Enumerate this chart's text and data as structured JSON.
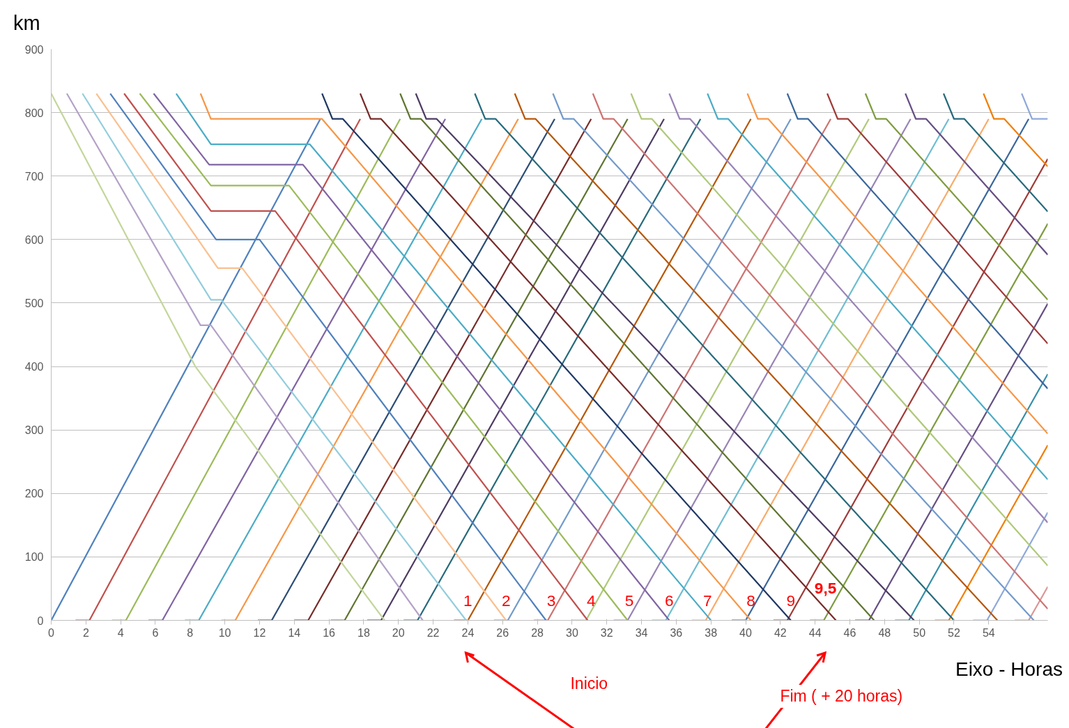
{
  "chart_data": {
    "type": "line",
    "xlabel": "Eixo - Horas",
    "ylabel": "km",
    "xlim": [
      0,
      57.4
    ],
    "ylim": [
      0,
      900
    ],
    "xticks": [
      0,
      2,
      4,
      6,
      8,
      10,
      12,
      14,
      16,
      18,
      20,
      22,
      24,
      26,
      28,
      30,
      32,
      34,
      36,
      38,
      40,
      42,
      44,
      46,
      48,
      50,
      52,
      54
    ],
    "yticks": [
      0,
      100,
      200,
      300,
      400,
      500,
      600,
      700,
      800,
      900
    ],
    "grid": "y",
    "series": [
      {
        "color": "#4f81bd",
        "x": [
          0,
          15.5
        ],
        "values": [
          0,
          790
        ]
      },
      {
        "color": "#c0504d",
        "x": [
          1.4,
          2.2,
          17.8
        ],
        "values": [
          0,
          0,
          790
        ]
      },
      {
        "color": "#9bbb59",
        "x": [
          3.5,
          4.3,
          20.1
        ],
        "values": [
          0,
          0,
          790
        ]
      },
      {
        "color": "#8064a2",
        "x": [
          5.6,
          6.4,
          22.7
        ],
        "values": [
          0,
          0,
          790
        ]
      },
      {
        "color": "#4bacc6",
        "x": [
          7.7,
          8.5,
          24.8
        ],
        "values": [
          0,
          0,
          790
        ]
      },
      {
        "color": "#f79646",
        "x": [
          9.8,
          10.6,
          26.9
        ],
        "values": [
          0,
          0,
          790
        ]
      },
      {
        "color": "#2c4d75",
        "x": [
          11.9,
          12.7,
          29.0
        ],
        "values": [
          0,
          0,
          790
        ]
      },
      {
        "color": "#772c2a",
        "x": [
          14.0,
          14.8,
          31.1
        ],
        "values": [
          0,
          0,
          790
        ]
      },
      {
        "color": "#5f7530",
        "x": [
          16.1,
          16.9,
          33.2
        ],
        "values": [
          0,
          0,
          790
        ]
      },
      {
        "color": "#4d3b62",
        "x": [
          18.2,
          19.0,
          35.3
        ],
        "values": [
          0,
          0,
          790
        ]
      },
      {
        "color": "#276a7c",
        "x": [
          20.3,
          21.1,
          37.4
        ],
        "values": [
          0,
          0,
          790
        ]
      },
      {
        "color": "#b65708",
        "x": [
          23.2,
          24.0,
          40.3
        ],
        "values": [
          0,
          0,
          790
        ]
      },
      {
        "color": "#729aca",
        "x": [
          25.5,
          26.3,
          42.6
        ],
        "values": [
          0,
          0,
          790
        ]
      },
      {
        "color": "#cd7371",
        "x": [
          27.8,
          28.6,
          44.9
        ],
        "values": [
          0,
          0,
          790
        ]
      },
      {
        "color": "#afc97a",
        "x": [
          30.0,
          30.8,
          47.1
        ],
        "values": [
          0,
          0,
          790
        ]
      },
      {
        "color": "#9983b5",
        "x": [
          32.4,
          33.2,
          49.5
        ],
        "values": [
          0,
          0,
          790
        ]
      },
      {
        "color": "#6fbdd1",
        "x": [
          34.6,
          35.4,
          51.7
        ],
        "values": [
          0,
          0,
          790
        ]
      },
      {
        "color": "#f9ab6b",
        "x": [
          36.9,
          37.7,
          54.0
        ],
        "values": [
          0,
          0,
          790
        ]
      },
      {
        "color": "#3a679c",
        "x": [
          39.2,
          40.0,
          56.3
        ],
        "values": [
          0,
          0,
          790
        ]
      },
      {
        "color": "#9f3b38",
        "x": [
          41.6,
          42.4,
          57.4
        ],
        "values": [
          0,
          0,
          727
        ]
      },
      {
        "color": "#7e9c40",
        "x": [
          43.7,
          44.5,
          57.4
        ],
        "values": [
          0,
          0,
          625
        ]
      },
      {
        "color": "#664f83",
        "x": [
          46.3,
          47.1,
          57.4
        ],
        "values": [
          0,
          0,
          499
        ]
      },
      {
        "color": "#358ea6",
        "x": [
          48.6,
          49.4,
          57.4
        ],
        "values": [
          0,
          0,
          388
        ]
      },
      {
        "color": "#f07f09",
        "x": [
          50.9,
          51.7,
          57.4
        ],
        "values": [
          0,
          0,
          276
        ]
      },
      {
        "color": "#8ea9db",
        "x": [
          53.1,
          53.9,
          57.4
        ],
        "values": [
          0,
          0,
          170
        ]
      },
      {
        "color": "#d99795",
        "x": [
          55.5,
          56.3,
          57.4
        ],
        "values": [
          0,
          0,
          53
        ]
      },
      {
        "color": "#c3d69b",
        "x": [
          0,
          8.3,
          19.2
        ],
        "values": [
          830,
          400,
          0
        ]
      },
      {
        "color": "#b3a2c7",
        "x": [
          0.9,
          8.6,
          9.2,
          21.4
        ],
        "values": [
          830,
          465,
          465,
          0
        ]
      },
      {
        "color": "#93cddd",
        "x": [
          1.8,
          9.2,
          9.8,
          23.9
        ],
        "values": [
          830,
          505,
          505,
          0
        ]
      },
      {
        "color": "#fac090",
        "x": [
          2.6,
          9.6,
          11.0,
          26.2
        ],
        "values": [
          830,
          555,
          555,
          0
        ]
      },
      {
        "color": "#4f81bd",
        "x": [
          3.4,
          9.5,
          12.0,
          28.5
        ],
        "values": [
          830,
          600,
          600,
          0
        ]
      },
      {
        "color": "#c0504d",
        "x": [
          4.2,
          9.2,
          12.9,
          30.9
        ],
        "values": [
          830,
          645,
          645,
          0
        ]
      },
      {
        "color": "#9bbb59",
        "x": [
          5.1,
          9.2,
          13.7,
          33.2
        ],
        "values": [
          830,
          685,
          685,
          0
        ]
      },
      {
        "color": "#8064a2",
        "x": [
          5.9,
          9.1,
          14.5,
          35.6
        ],
        "values": [
          830,
          718,
          718,
          0
        ]
      },
      {
        "color": "#4bacc6",
        "x": [
          7.2,
          9.2,
          14.9,
          38.0
        ],
        "values": [
          830,
          750,
          750,
          0
        ]
      },
      {
        "color": "#f79646",
        "x": [
          8.6,
          9.2,
          15.6,
          40.3
        ],
        "values": [
          830,
          790,
          790,
          0
        ]
      },
      {
        "color": "#1f3864",
        "x": [
          15.6,
          16.2,
          16.8,
          42.6
        ],
        "values": [
          830,
          790,
          790,
          0
        ]
      },
      {
        "color": "#772c2a",
        "x": [
          17.8,
          18.4,
          19.0,
          45.2
        ],
        "values": [
          830,
          790,
          790,
          0
        ]
      },
      {
        "color": "#5f7530",
        "x": [
          20.1,
          20.7,
          21.3,
          47.4
        ],
        "values": [
          830,
          790,
          790,
          0
        ]
      },
      {
        "color": "#4d3b62",
        "x": [
          21.0,
          21.6,
          22.2,
          49.7
        ],
        "values": [
          830,
          790,
          790,
          0
        ]
      },
      {
        "color": "#276a7c",
        "x": [
          24.4,
          25.0,
          25.6,
          52.0
        ],
        "values": [
          830,
          790,
          790,
          0
        ]
      },
      {
        "color": "#b65708",
        "x": [
          26.7,
          27.3,
          27.9,
          54.5
        ],
        "values": [
          830,
          790,
          790,
          0
        ]
      },
      {
        "color": "#729aca",
        "x": [
          28.9,
          29.5,
          30.1,
          56.6
        ],
        "values": [
          830,
          790,
          790,
          0
        ]
      },
      {
        "color": "#cd7371",
        "x": [
          31.2,
          31.8,
          32.4,
          57.4
        ],
        "values": [
          830,
          790,
          790,
          18
        ]
      },
      {
        "color": "#afc97a",
        "x": [
          33.4,
          34.0,
          34.6,
          57.4
        ],
        "values": [
          830,
          790,
          790,
          86
        ]
      },
      {
        "color": "#9983b5",
        "x": [
          35.6,
          36.2,
          36.8,
          57.4
        ],
        "values": [
          830,
          790,
          790,
          154
        ]
      },
      {
        "color": "#4bacc6",
        "x": [
          37.8,
          38.4,
          39.0,
          57.4
        ],
        "values": [
          830,
          790,
          790,
          222
        ]
      },
      {
        "color": "#f79646",
        "x": [
          40.1,
          40.7,
          41.3,
          57.4
        ],
        "values": [
          830,
          790,
          790,
          294
        ]
      },
      {
        "color": "#3a679c",
        "x": [
          42.4,
          43.0,
          43.6,
          57.4
        ],
        "values": [
          830,
          790,
          790,
          365
        ]
      },
      {
        "color": "#9f3b38",
        "x": [
          44.7,
          45.3,
          45.9,
          57.4
        ],
        "values": [
          830,
          790,
          790,
          436
        ]
      },
      {
        "color": "#7e9c40",
        "x": [
          46.9,
          47.5,
          48.1,
          57.4
        ],
        "values": [
          830,
          790,
          790,
          505
        ]
      },
      {
        "color": "#664f83",
        "x": [
          49.2,
          49.8,
          50.4,
          57.4
        ],
        "values": [
          830,
          790,
          790,
          576
        ]
      },
      {
        "color": "#276a7c",
        "x": [
          51.4,
          52.0,
          52.6,
          57.4
        ],
        "values": [
          830,
          790,
          790,
          644
        ]
      },
      {
        "color": "#f07f09",
        "x": [
          53.7,
          54.3,
          54.9,
          57.4
        ],
        "values": [
          830,
          790,
          790,
          715
        ]
      },
      {
        "color": "#8ea9db",
        "x": [
          55.9,
          56.5,
          57.4
        ],
        "values": [
          830,
          790,
          790
        ]
      }
    ],
    "annotations": [
      "1",
      "2",
      "3",
      "4",
      "5",
      "6",
      "7",
      "8",
      "9",
      "9,5",
      "Inicio",
      "Fim ( + 20 horas)"
    ]
  }
}
